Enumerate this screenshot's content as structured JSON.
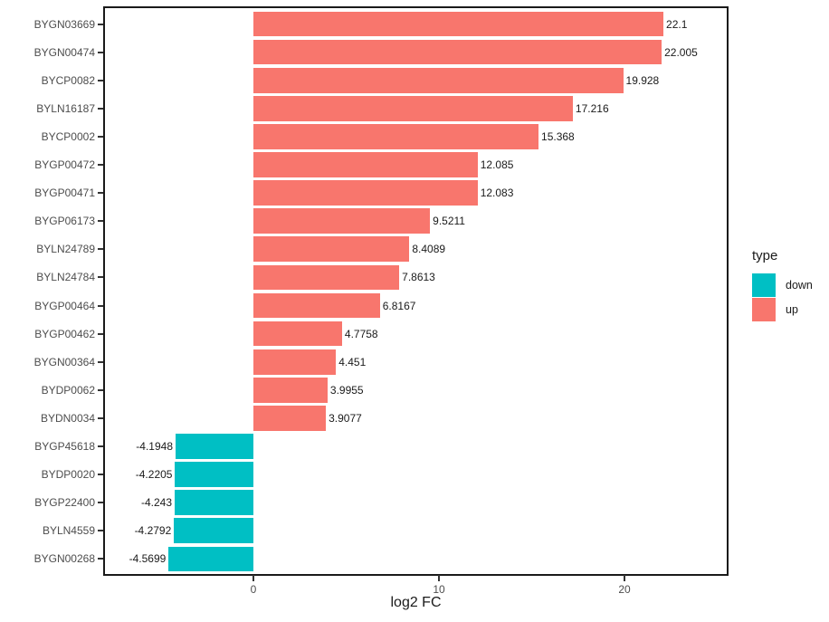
{
  "chart_data": {
    "type": "bar",
    "orientation": "horizontal",
    "title": "",
    "xlabel": "log2 FC",
    "ylabel": "",
    "grid": "none",
    "legend_position": "right",
    "legend_title": "type",
    "legend_entries": [
      {
        "label": "down",
        "color": "#00BFC4"
      },
      {
        "label": "up",
        "color": "#F8766D"
      }
    ],
    "xlim": [
      -8.0,
      25.6
    ],
    "x_ticks": [
      {
        "value": 0,
        "label": "0"
      },
      {
        "value": 10,
        "label": "10"
      },
      {
        "value": 20,
        "label": "20"
      }
    ],
    "points": [
      {
        "gene": "BYGN03669",
        "value": 22.1,
        "label": "22.1",
        "type": "up"
      },
      {
        "gene": "BYGN00474",
        "value": 22.005,
        "label": "22.005",
        "type": "up"
      },
      {
        "gene": "BYCP0082",
        "value": 19.928,
        "label": "19.928",
        "type": "up"
      },
      {
        "gene": "BYLN16187",
        "value": 17.216,
        "label": "17.216",
        "type": "up"
      },
      {
        "gene": "BYCP0002",
        "value": 15.368,
        "label": "15.368",
        "type": "up"
      },
      {
        "gene": "BYGP00472",
        "value": 12.085,
        "label": "12.085",
        "type": "up"
      },
      {
        "gene": "BYGP00471",
        "value": 12.083,
        "label": "12.083",
        "type": "up"
      },
      {
        "gene": "BYGP06173",
        "value": 9.5211,
        "label": "9.5211",
        "type": "up"
      },
      {
        "gene": "BYLN24789",
        "value": 8.4089,
        "label": "8.4089",
        "type": "up"
      },
      {
        "gene": "BYLN24784",
        "value": 7.8613,
        "label": "7.8613",
        "type": "up"
      },
      {
        "gene": "BYGP00464",
        "value": 6.8167,
        "label": "6.8167",
        "type": "up"
      },
      {
        "gene": "BYGP00462",
        "value": 4.7758,
        "label": "4.7758",
        "type": "up"
      },
      {
        "gene": "BYGN00364",
        "value": 4.451,
        "label": "4.451",
        "type": "up"
      },
      {
        "gene": "BYDP0062",
        "value": 3.9955,
        "label": "3.9955",
        "type": "up"
      },
      {
        "gene": "BYDN0034",
        "value": 3.9077,
        "label": "3.9077",
        "type": "up"
      },
      {
        "gene": "BYGP45618",
        "value": -4.1948,
        "label": "-4.1948",
        "type": "down"
      },
      {
        "gene": "BYDP0020",
        "value": -4.2205,
        "label": "-4.2205",
        "type": "down"
      },
      {
        "gene": "BYGP22400",
        "value": -4.243,
        "label": "-4.243",
        "type": "down"
      },
      {
        "gene": "BYLN4559",
        "value": -4.2792,
        "label": "-4.2792",
        "type": "down"
      },
      {
        "gene": "BYGN00268",
        "value": -4.5699,
        "label": "-4.5699",
        "type": "down"
      }
    ]
  },
  "colors": {
    "up": "#F8766D",
    "down": "#00BFC4",
    "axis_text": "#4d4d4d",
    "value_text": "#1a1a1a",
    "panel_border": "#1a1a1a",
    "tick": "#333333",
    "background": "#ffffff"
  }
}
